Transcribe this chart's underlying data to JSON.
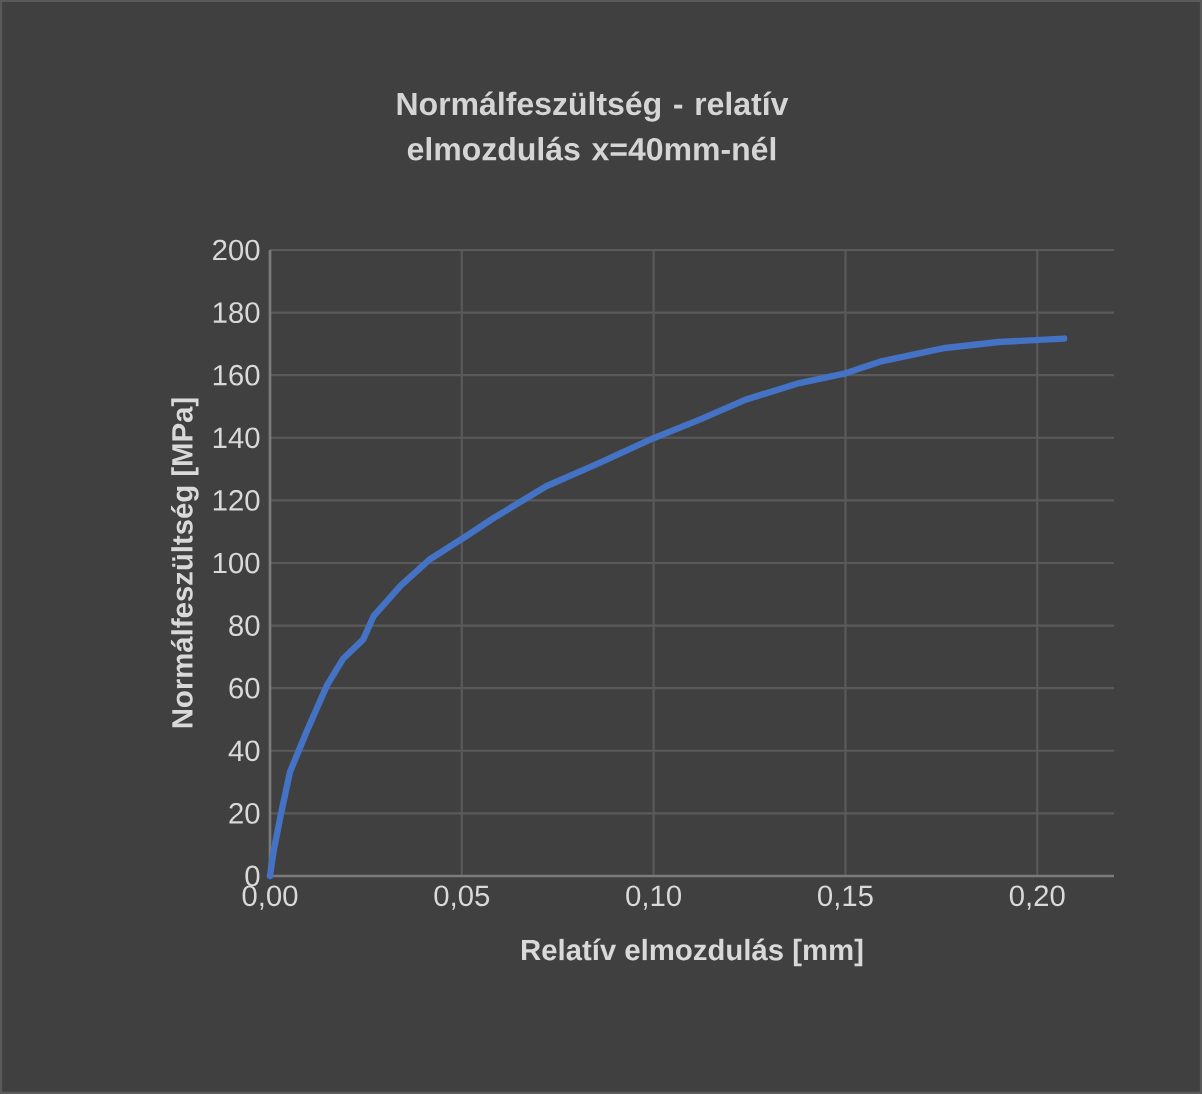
{
  "chart_data": {
    "type": "line",
    "title": "Normálfeszültség - relatív elmozdulás x=40mm-nél",
    "xlabel": "Relatív elmozdulás [mm]",
    "ylabel": "Normálfeszültség  [MPa]",
    "x": [
      0,
      0.0009,
      0.0026,
      0.0052,
      0.0095,
      0.0148,
      0.019,
      0.0243,
      0.027,
      0.034,
      0.0417,
      0.0512,
      0.0582,
      0.072,
      0.0859,
      0.0998,
      0.112,
      0.124,
      0.138,
      0.15,
      0.159,
      0.176,
      0.19,
      0.207
    ],
    "series": [
      {
        "color": "#4472c4",
        "values": [
          0,
          7.6,
          18.3,
          33.2,
          46,
          60.8,
          69.3,
          75.6,
          83,
          92.7,
          101.2,
          108.6,
          114.3,
          124.5,
          132,
          139.8,
          145.8,
          152.2,
          157.5,
          160.6,
          164.3,
          168.7,
          170.6,
          171.7
        ]
      }
    ],
    "xlim": [
      0,
      0.22
    ],
    "ylim": [
      0,
      200
    ],
    "xticks": [
      {
        "value": 0,
        "label": "0,00"
      },
      {
        "value": 0.05,
        "label": "0,05"
      },
      {
        "value": 0.1,
        "label": "0,10"
      },
      {
        "value": 0.15,
        "label": "0,15"
      },
      {
        "value": 0.2,
        "label": "0,20"
      }
    ],
    "yticks": [
      0,
      20,
      40,
      60,
      80,
      100,
      120,
      140,
      160,
      180,
      200
    ],
    "grid": true,
    "marker": "none",
    "line_style": "solid"
  }
}
